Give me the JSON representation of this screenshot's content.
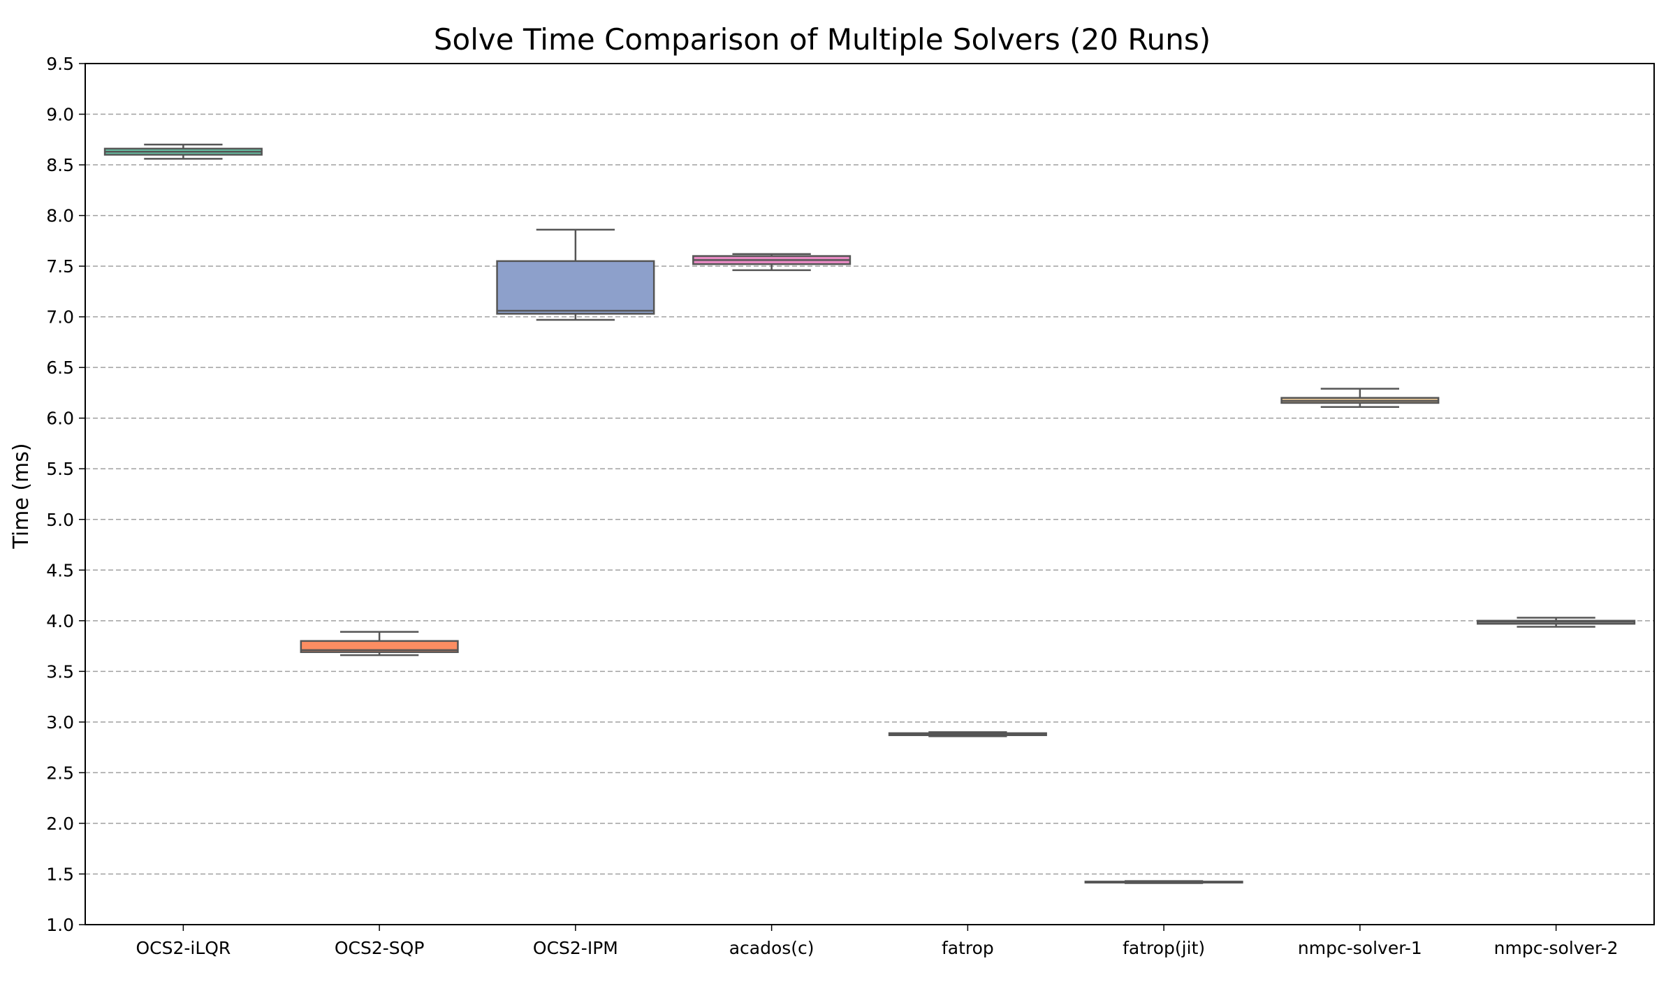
{
  "chart_data": {
    "type": "box",
    "title": "Solve Time Comparison of Multiple Solvers (20 Runs)",
    "xlabel": "",
    "ylabel": "Time (ms)",
    "ylim": [
      1.0,
      9.5
    ],
    "yticks": [
      "1.0",
      "1.5",
      "2.0",
      "2.5",
      "3.0",
      "3.5",
      "4.0",
      "4.5",
      "5.0",
      "5.5",
      "6.0",
      "6.5",
      "7.0",
      "7.5",
      "8.0",
      "8.5",
      "9.0",
      "9.5"
    ],
    "grid": "horizontal-dashed",
    "categories": [
      "OCS2-iLQR",
      "OCS2-SQP",
      "OCS2-IPM",
      "acados(c)",
      "fatrop",
      "fatrop(jit)",
      "nmpc-solver-1",
      "nmpc-solver-2"
    ],
    "boxes": [
      {
        "name": "OCS2-iLQR",
        "whislo": 8.56,
        "q1": 8.6,
        "med": 8.63,
        "q3": 8.66,
        "whishi": 8.7,
        "color": "#66c2a5"
      },
      {
        "name": "OCS2-SQP",
        "whislo": 3.66,
        "q1": 3.69,
        "med": 3.71,
        "q3": 3.8,
        "whishi": 3.89,
        "color": "#fc8d62"
      },
      {
        "name": "OCS2-IPM",
        "whislo": 6.97,
        "q1": 7.03,
        "med": 7.06,
        "q3": 7.55,
        "whishi": 7.86,
        "color": "#8da0cb"
      },
      {
        "name": "acados(c)",
        "whislo": 7.46,
        "q1": 7.52,
        "med": 7.56,
        "q3": 7.6,
        "whishi": 7.62,
        "color": "#e78ac3"
      },
      {
        "name": "fatrop",
        "whislo": 2.86,
        "q1": 2.87,
        "med": 2.88,
        "q3": 2.89,
        "whishi": 2.9,
        "color": "#a6d854"
      },
      {
        "name": "fatrop(jit)",
        "whislo": 1.41,
        "q1": 1.415,
        "med": 1.42,
        "q3": 1.425,
        "whishi": 1.43,
        "color": "#ffd92f"
      },
      {
        "name": "nmpc-solver-1",
        "whislo": 6.11,
        "q1": 6.15,
        "med": 6.17,
        "q3": 6.2,
        "whishi": 6.29,
        "color": "#e5c494"
      },
      {
        "name": "nmpc-solver-2",
        "whislo": 3.94,
        "q1": 3.97,
        "med": 3.99,
        "q3": 4.0,
        "whishi": 4.03,
        "color": "#b3b3b3"
      }
    ]
  }
}
